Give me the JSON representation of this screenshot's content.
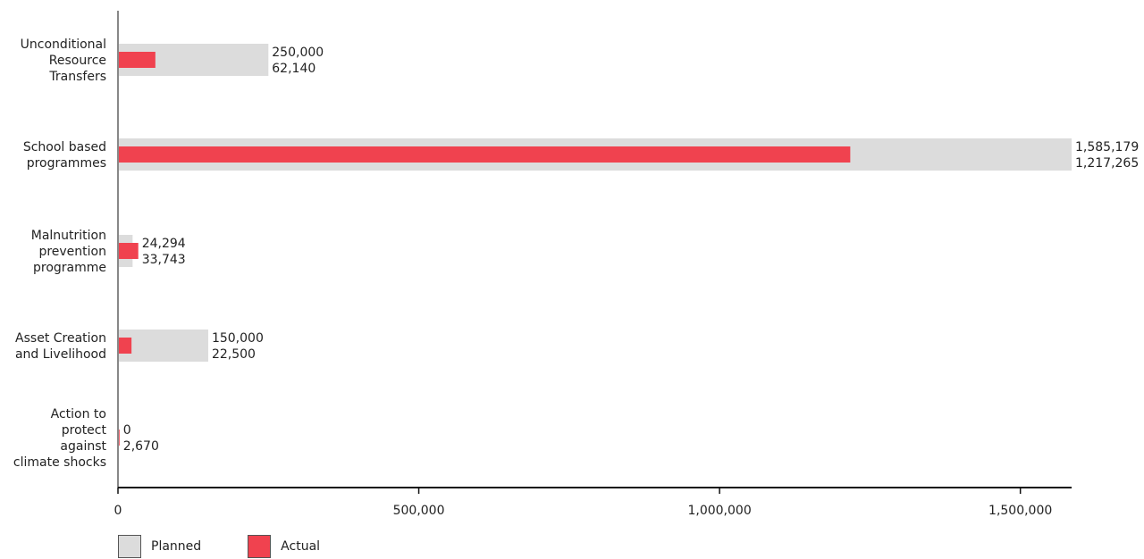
{
  "chart_data": {
    "type": "bar",
    "orientation": "horizontal",
    "categories": [
      [
        "Unconditional",
        "Resource",
        "Transfers"
      ],
      [
        "School based",
        "programmes"
      ],
      [
        "Malnutrition",
        "prevention",
        "programme"
      ],
      [
        "Asset Creation",
        "and Livelihood"
      ],
      [
        "Action to",
        "protect",
        "against",
        "climate shocks"
      ]
    ],
    "series": [
      {
        "name": "Planned",
        "values": [
          250000,
          1585179,
          24294,
          150000,
          0
        ],
        "color": "#dcdcdc"
      },
      {
        "name": "Actual",
        "values": [
          62140,
          1217265,
          33743,
          22500,
          2670
        ],
        "color": "#f0424f"
      }
    ],
    "value_labels": [
      [
        "250,000",
        "62,140"
      ],
      [
        "1,585,179",
        "1,217,265"
      ],
      [
        "24,294",
        "33,743"
      ],
      [
        "150,000",
        "22,500"
      ],
      [
        "0",
        "2,670"
      ]
    ],
    "xlim": [
      0,
      1585179
    ],
    "x_ticks": [
      0,
      500000,
      1000000,
      1500000
    ],
    "x_tick_labels": [
      "0",
      "500,000",
      "1,000,000",
      "1,500,000"
    ],
    "legend_position": "bottom-left",
    "grid": false
  }
}
